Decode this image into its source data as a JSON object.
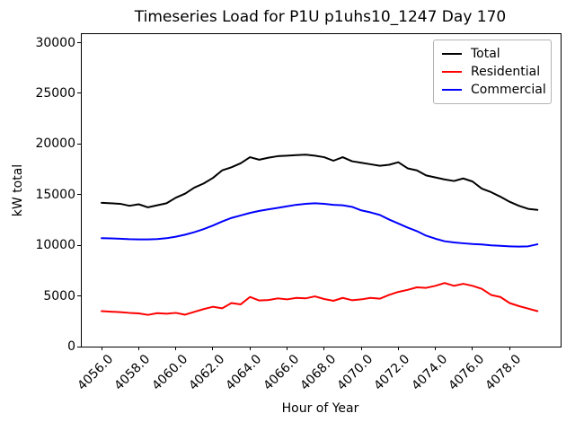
{
  "chart_data": {
    "type": "line",
    "title": "Timeseries Load for P1U p1uhs10_1247  Day 170",
    "xlabel": "Hour of Year",
    "ylabel": "kW total",
    "xlim": [
      4054.93,
      4080.75
    ],
    "ylim": [
      0,
      30850
    ],
    "grid": false,
    "legend_position": "upper right",
    "x_tick_rotation": 45,
    "x_ticks": [
      4056,
      4058,
      4060,
      4062,
      4064,
      4066,
      4068,
      4070,
      4072,
      4074,
      4076,
      4078
    ],
    "x_tick_labels": [
      "4056.0",
      "4058.0",
      "4060.0",
      "4062.0",
      "4064.0",
      "4066.0",
      "4068.0",
      "4070.0",
      "4072.0",
      "4074.0",
      "4076.0",
      "4078.0"
    ],
    "y_ticks": [
      0,
      5000,
      10000,
      15000,
      20000,
      25000,
      30000
    ],
    "y_tick_labels": [
      "0",
      "5000",
      "10000",
      "15000",
      "20000",
      "25000",
      "30000"
    ],
    "x_start": 4056.0,
    "x_step": 0.5,
    "series": [
      {
        "name": "Total",
        "color": "#000000",
        "values": [
          14200,
          14150,
          14100,
          13900,
          14050,
          13750,
          13950,
          14150,
          14700,
          15100,
          15700,
          16100,
          16650,
          17400,
          17700,
          18100,
          18700,
          18450,
          18650,
          18800,
          18850,
          18900,
          18950,
          18850,
          18700,
          18350,
          18700,
          18300,
          18150,
          18000,
          17850,
          17950,
          18200,
          17600,
          17400,
          16900,
          16700,
          16500,
          16350,
          16600,
          16300,
          15600,
          15250,
          14800,
          14300,
          13900,
          13600,
          13500
        ]
      },
      {
        "name": "Residential",
        "color": "#ff0000",
        "values": [
          3500,
          3450,
          3400,
          3330,
          3280,
          3130,
          3300,
          3250,
          3330,
          3150,
          3430,
          3700,
          3930,
          3780,
          4300,
          4170,
          4900,
          4550,
          4600,
          4760,
          4660,
          4810,
          4760,
          4960,
          4700,
          4520,
          4810,
          4580,
          4660,
          4810,
          4730,
          5100,
          5400,
          5600,
          5850,
          5800,
          6000,
          6280,
          6000,
          6200,
          6000,
          5700,
          5100,
          4900,
          4300,
          4000,
          3750,
          3500
        ]
      },
      {
        "name": "Commercial",
        "color": "#0000ff",
        "values": [
          10700,
          10680,
          10650,
          10600,
          10580,
          10580,
          10620,
          10700,
          10850,
          11050,
          11300,
          11600,
          11950,
          12350,
          12700,
          12950,
          13200,
          13400,
          13550,
          13700,
          13850,
          14000,
          14100,
          14150,
          14100,
          14000,
          13950,
          13800,
          13450,
          13250,
          13000,
          12550,
          12150,
          11750,
          11400,
          10950,
          10650,
          10400,
          10280,
          10200,
          10130,
          10080,
          10000,
          9950,
          9900,
          9870,
          9900,
          10100
        ]
      }
    ],
    "line_width": 2
  }
}
